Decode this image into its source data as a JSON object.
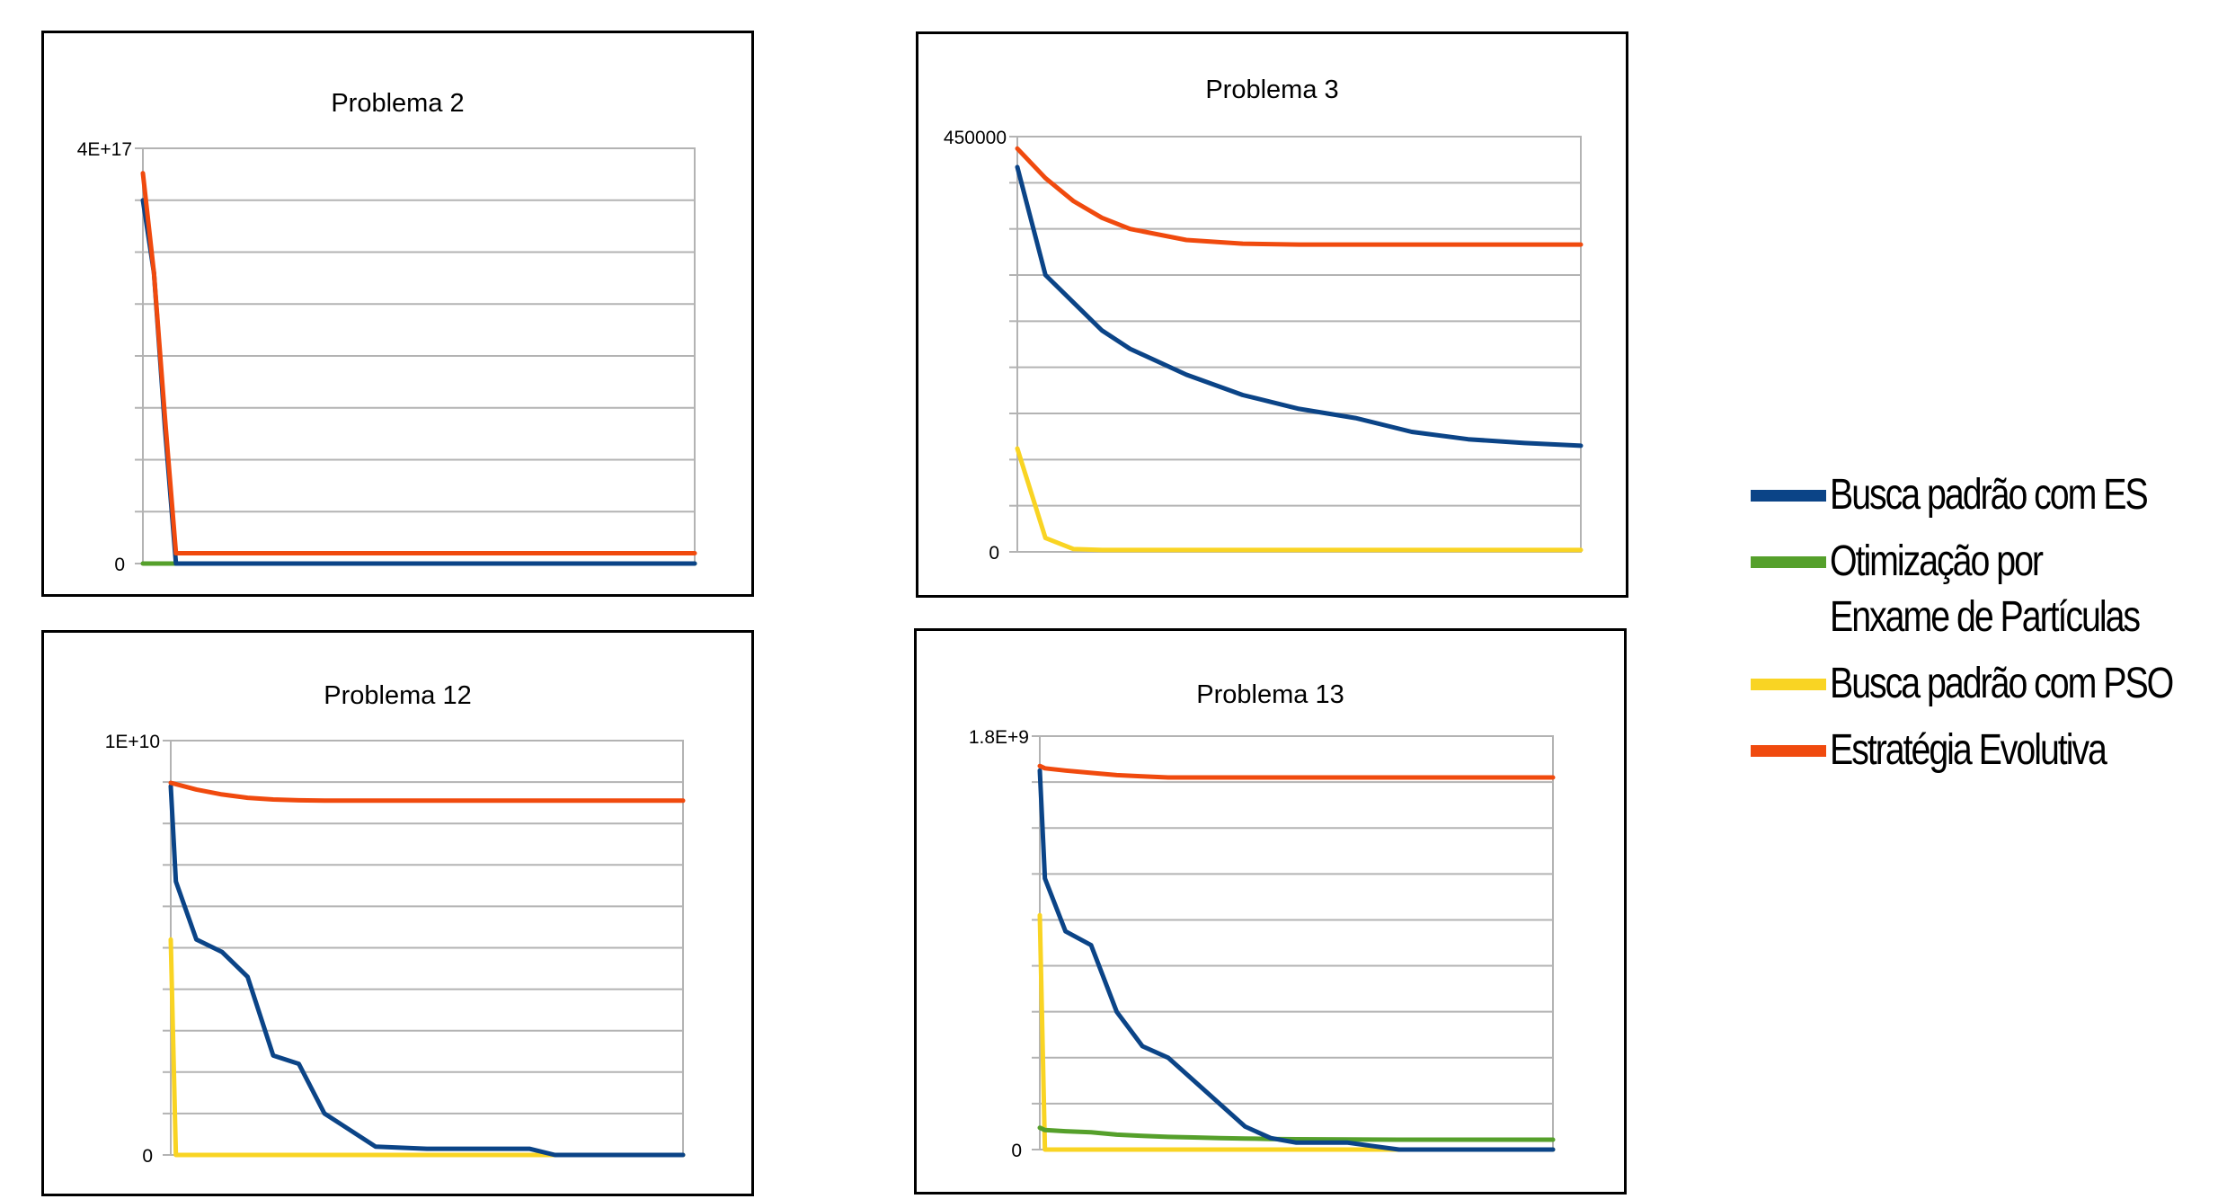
{
  "series_legend": [
    {
      "name": "Busca padrão com ES",
      "color": "#0b4487"
    },
    {
      "name": "Otimização por Enxame de Partículas",
      "color": "#55a02b"
    },
    {
      "name": "Busca padrão com PSO",
      "color": "#f9d423"
    },
    {
      "name": "Estratégia Evolutiva",
      "color": "#f04a0e"
    }
  ],
  "chart_data": [
    {
      "type": "line",
      "title": "Problema 2",
      "ylim": [
        0,
        4e+17
      ],
      "y_tick_labels": [
        "4E+17",
        "0"
      ],
      "y_gridlines": 8,
      "grid": true,
      "x": [
        0,
        0.02,
        0.04,
        0.06,
        0.08,
        1
      ],
      "series": [
        {
          "name": "Estratégia Evolutiva",
          "color": "#f04a0e",
          "values": [
            3.76e+17,
            2.8e+17,
            1.4e+17,
            1e+16,
            1e+16,
            1e+16
          ]
        },
        {
          "name": "Busca padrão com ES",
          "color": "#0b4487",
          "values": [
            3.5e+17,
            2.8e+17,
            1.3e+17,
            0,
            0,
            0
          ]
        },
        {
          "name": "Otimização por Enxame de Partículas",
          "color": "#55a02b",
          "values": [
            0,
            0,
            0,
            0,
            0,
            0
          ]
        }
      ]
    },
    {
      "type": "line",
      "title": "Problema 3",
      "ylim": [
        0,
        450000
      ],
      "y_tick_labels": [
        "450000",
        "0"
      ],
      "y_gridlines": 9,
      "grid": true,
      "x": [
        0,
        0.05,
        0.1,
        0.15,
        0.2,
        0.3,
        0.4,
        0.5,
        0.6,
        0.7,
        0.8,
        0.9,
        1
      ],
      "series": [
        {
          "name": "Estratégia Evolutiva",
          "color": "#f04a0e",
          "values": [
            437000,
            405000,
            380000,
            362000,
            350000,
            338000,
            334000,
            333000,
            333000,
            333000,
            333000,
            333000,
            333000
          ]
        },
        {
          "name": "Busca padrão com ES",
          "color": "#0b4487",
          "values": [
            417000,
            300000,
            270000,
            240000,
            220000,
            192000,
            170000,
            155000,
            145000,
            130000,
            122000,
            118000,
            115000
          ]
        },
        {
          "name": "Busca padrão com PSO",
          "color": "#f9d423",
          "values": [
            112000,
            15000,
            3000,
            2000,
            2000,
            2000,
            2000,
            2000,
            2000,
            2000,
            2000,
            2000,
            2000
          ]
        }
      ]
    },
    {
      "type": "line",
      "title": "Problema 12",
      "ylim": [
        0,
        10000000000.0
      ],
      "y_tick_labels": [
        "1E+10",
        "0"
      ],
      "y_gridlines": 10,
      "grid": true,
      "x": [
        0,
        0.01,
        0.05,
        0.1,
        0.15,
        0.2,
        0.25,
        0.3,
        0.35,
        0.4,
        0.5,
        0.6,
        0.7,
        0.75,
        1
      ],
      "series": [
        {
          "name": "Estratégia Evolutiva",
          "color": "#f04a0e",
          "values": [
            8980000000.0,
            8950000000.0,
            8820000000.0,
            8700000000.0,
            8620000000.0,
            8580000000.0,
            8560000000.0,
            8550000000.0,
            8550000000.0,
            8550000000.0,
            8550000000.0,
            8550000000.0,
            8550000000.0,
            8550000000.0,
            8550000000.0
          ]
        },
        {
          "name": "Busca padrão com ES",
          "color": "#0b4487",
          "values": [
            8900000000.0,
            6600000000.0,
            5200000000.0,
            4900000000.0,
            4300000000.0,
            2400000000.0,
            2200000000.0,
            1000000000.0,
            600000000.0,
            200000000.0,
            150000000.0,
            150000000.0,
            150000000.0,
            0,
            0
          ]
        },
        {
          "name": "Busca padrão com PSO",
          "color": "#f9d423",
          "values": [
            5200000000.0,
            0,
            0,
            0,
            0,
            0,
            0,
            0,
            0,
            0,
            0,
            0,
            0,
            0,
            0
          ]
        }
      ]
    },
    {
      "type": "line",
      "title": "Problema 13",
      "ylim": [
        0,
        1800000000.0
      ],
      "y_tick_labels": [
        "1.8E+9",
        "0"
      ],
      "y_gridlines": 9,
      "grid": true,
      "x": [
        0,
        0.01,
        0.05,
        0.1,
        0.15,
        0.2,
        0.25,
        0.3,
        0.35,
        0.4,
        0.45,
        0.5,
        0.6,
        0.7,
        0.8,
        1
      ],
      "series": [
        {
          "name": "Estratégia Evolutiva",
          "color": "#f04a0e",
          "values": [
            1670000000.0,
            1660000000.0,
            1650000000.0,
            1640000000.0,
            1630000000.0,
            1625000000.0,
            1620000000.0,
            1620000000.0,
            1620000000.0,
            1620000000.0,
            1620000000.0,
            1620000000.0,
            1620000000.0,
            1620000000.0,
            1620000000.0,
            1620000000.0
          ]
        },
        {
          "name": "Busca padrão com ES",
          "color": "#0b4487",
          "values": [
            1650000000.0,
            1180000000.0,
            950000000.0,
            890000000.0,
            600000000.0,
            450000000.0,
            400000000.0,
            300000000.0,
            200000000.0,
            100000000.0,
            50000000.0,
            30000000.0,
            30000000.0,
            0,
            0,
            0
          ]
        },
        {
          "name": "Otimização por Enxame de Partículas",
          "color": "#55a02b",
          "values": [
            95000000.0,
            85000000.0,
            80000000.0,
            75000000.0,
            65000000.0,
            60000000.0,
            55000000.0,
            53000000.0,
            50000000.0,
            48000000.0,
            46000000.0,
            45000000.0,
            44000000.0,
            43000000.0,
            43000000.0,
            43000000.0
          ]
        },
        {
          "name": "Busca padrão com PSO",
          "color": "#f9d423",
          "values": [
            1020000000.0,
            0,
            0,
            0,
            0,
            0,
            0,
            0,
            0,
            0,
            0,
            0,
            0,
            0,
            0,
            0
          ]
        }
      ]
    }
  ]
}
